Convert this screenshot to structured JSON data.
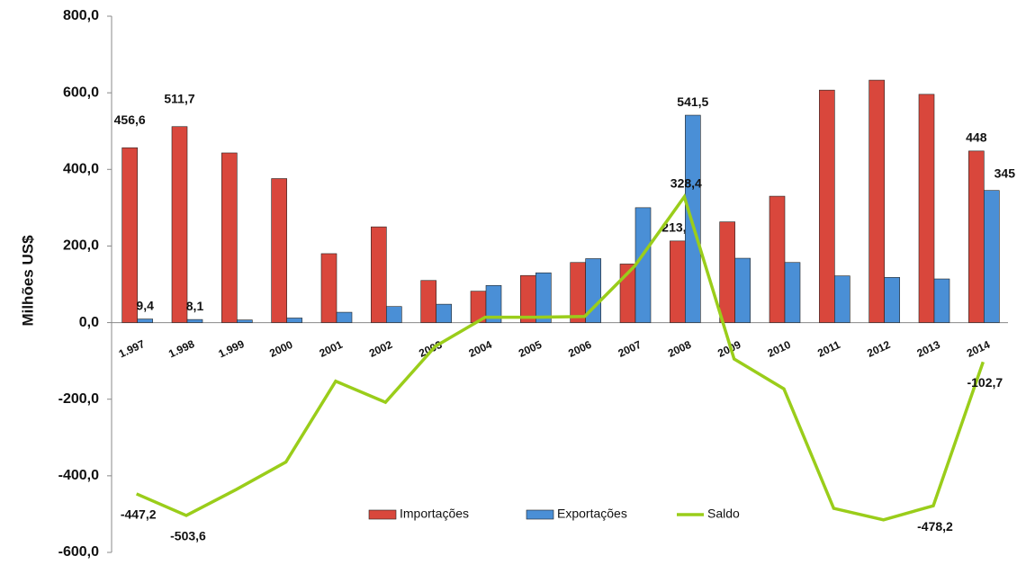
{
  "chart_data": {
    "type": "bar-line",
    "y_label": "Milhões US$",
    "categories": [
      "1.997",
      "1.998",
      "1.999",
      "2000",
      "2001",
      "2002",
      "2003",
      "2004",
      "2005",
      "2006",
      "2007",
      "2008",
      "2009",
      "2010",
      "2011",
      "2012",
      "2013",
      "2014"
    ],
    "series": [
      {
        "name": "Importações",
        "type": "bar",
        "color": "#d9473c",
        "values": [
          456.6,
          511.7,
          443,
          376,
          180,
          250,
          110,
          82,
          123,
          157,
          153,
          213.1,
          263,
          330,
          607,
          633,
          596,
          448
        ],
        "value_labels": [
          "456,6",
          "511,7",
          null,
          null,
          null,
          null,
          null,
          null,
          null,
          null,
          null,
          "213,1",
          null,
          null,
          null,
          null,
          null,
          "448"
        ]
      },
      {
        "name": "Exportações",
        "type": "bar",
        "color": "#4a8fd6",
        "values": [
          9.4,
          8.1,
          7,
          12,
          27,
          42,
          48,
          97,
          130,
          167,
          300,
          541.5,
          168,
          157,
          122,
          118,
          114,
          345
        ],
        "value_labels": [
          "9,4",
          "8,1",
          null,
          null,
          null,
          null,
          null,
          null,
          null,
          null,
          null,
          "541,5",
          null,
          null,
          null,
          null,
          null,
          "345"
        ]
      },
      {
        "name": "Saldo",
        "type": "line",
        "color": "#9acd1a",
        "values": [
          -447.2,
          -503.6,
          -436,
          -364,
          -153,
          -208,
          -62,
          14,
          14,
          16,
          147,
          328.4,
          -95,
          -173,
          -485,
          -515,
          -478.2,
          -102.7
        ],
        "value_labels": [
          "-447,2",
          "-503,6",
          null,
          null,
          null,
          null,
          null,
          null,
          null,
          null,
          null,
          "328,4",
          null,
          null,
          null,
          null,
          "-478,2",
          "-102,7"
        ]
      }
    ],
    "ylim": [
      -600,
      800
    ],
    "yticks": [
      {
        "value": -600,
        "label": "-600,0"
      },
      {
        "value": -400,
        "label": "-400,0"
      },
      {
        "value": -200,
        "label": "-200,0"
      },
      {
        "value": 0,
        "label": "0,0"
      },
      {
        "value": 200,
        "label": "200,0"
      },
      {
        "value": 400,
        "label": "400,0"
      },
      {
        "value": 600,
        "label": "600,0"
      },
      {
        "value": 800,
        "label": "800,0"
      }
    ],
    "legend": "bottom"
  }
}
